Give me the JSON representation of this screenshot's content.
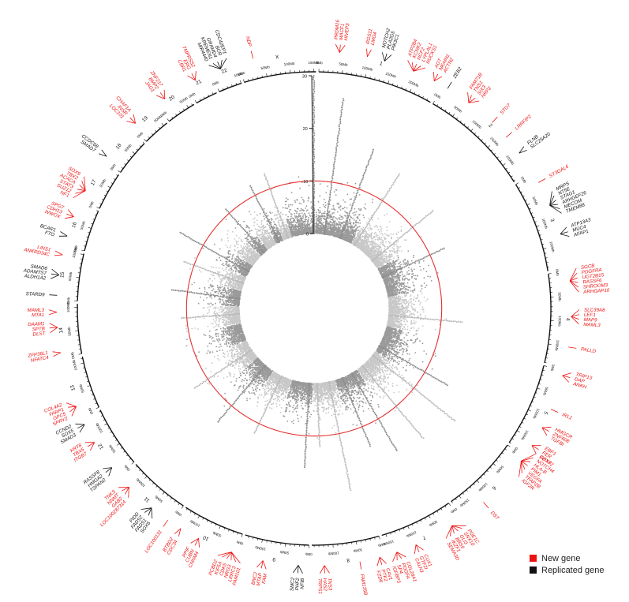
{
  "chart_data": {
    "type": "circular-manhattan",
    "title": "",
    "radial_axis": {
      "ticks": [
        "0",
        "10",
        "20",
        "30"
      ],
      "range": [
        0,
        30
      ]
    },
    "significance_threshold": 10,
    "chromosomes": [
      {
        "name": "1",
        "length": 249,
        "ticks": [
          "0Mb",
          "50Mb",
          "100Mb",
          "150Mb",
          "200Mb"
        ]
      },
      {
        "name": "2",
        "length": 243,
        "ticks": [
          "0Mb",
          "50Mb",
          "100Mb",
          "150Mb",
          "200Mb"
        ]
      },
      {
        "name": "3",
        "length": 198,
        "ticks": [
          "0Mb",
          "50Mb",
          "100Mb",
          "150Mb"
        ]
      },
      {
        "name": "4",
        "length": 191,
        "ticks": [
          "0Mb",
          "50Mb",
          "100Mb",
          "150Mb"
        ]
      },
      {
        "name": "5",
        "length": 181,
        "ticks": [
          "0Mb",
          "50Mb",
          "100Mb",
          "150Mb"
        ]
      },
      {
        "name": "6",
        "length": 171,
        "ticks": [
          "0Mb",
          "50Mb",
          "100Mb",
          "150Mb"
        ]
      },
      {
        "name": "7",
        "length": 159,
        "ticks": [
          "0Mb",
          "50Mb",
          "100Mb",
          "150Mb"
        ]
      },
      {
        "name": "8",
        "length": 145,
        "ticks": [
          "0Mb",
          "50Mb",
          "100Mb"
        ]
      },
      {
        "name": "9",
        "length": 138,
        "ticks": [
          "0Mb",
          "50Mb",
          "100Mb"
        ]
      },
      {
        "name": "10",
        "length": 134,
        "ticks": [
          "0Mb",
          "50Mb",
          "100Mb"
        ]
      },
      {
        "name": "11",
        "length": 135,
        "ticks": [
          "0Mb",
          "50Mb",
          "100Mb"
        ]
      },
      {
        "name": "12",
        "length": 133,
        "ticks": [
          "0Mb",
          "50Mb",
          "100Mb"
        ]
      },
      {
        "name": "13",
        "length": 114,
        "ticks": [
          "0Mb",
          "50Mb",
          "100Mb"
        ]
      },
      {
        "name": "14",
        "length": 107,
        "ticks": [
          "0Mb",
          "50Mb",
          "100Mb"
        ]
      },
      {
        "name": "15",
        "length": 102,
        "ticks": [
          "0Mb",
          "50Mb",
          "100Mb"
        ]
      },
      {
        "name": "16",
        "length": 90,
        "ticks": [
          "0Mb",
          "50Mb"
        ]
      },
      {
        "name": "17",
        "length": 83,
        "ticks": [
          "0Mb",
          "50Mb"
        ]
      },
      {
        "name": "18",
        "length": 80,
        "ticks": [
          "0Mb",
          "50Mb"
        ]
      },
      {
        "name": "19",
        "length": 59,
        "ticks": [
          "0Mb",
          "50Mb"
        ]
      },
      {
        "name": "20",
        "length": 64,
        "ticks": [
          "0Mb",
          "50Mb"
        ]
      },
      {
        "name": "21",
        "length": 48,
        "ticks": [
          "0Mb"
        ]
      },
      {
        "name": "22",
        "length": 51,
        "ticks": [
          "0Mb",
          "50Mb"
        ]
      },
      {
        "name": "X",
        "length": 155,
        "ticks": [
          "0Mb",
          "50Mb",
          "100Mb",
          "150Mb"
        ]
      }
    ],
    "peaks": [
      {
        "chr": "X",
        "pos": 150,
        "value": 30
      },
      {
        "chr": "1",
        "pos": 60,
        "value": 26
      },
      {
        "chr": "1",
        "pos": 170,
        "value": 18
      },
      {
        "chr": "2",
        "pos": 20,
        "value": 16
      },
      {
        "chr": "2",
        "pos": 180,
        "value": 15
      },
      {
        "chr": "3",
        "pos": 60,
        "value": 13
      },
      {
        "chr": "4",
        "pos": 120,
        "value": 14
      },
      {
        "chr": "5",
        "pos": 140,
        "value": 15
      },
      {
        "chr": "6",
        "pos": 30,
        "value": 20
      },
      {
        "chr": "6",
        "pos": 130,
        "value": 18
      },
      {
        "chr": "7",
        "pos": 40,
        "value": 17
      },
      {
        "chr": "7",
        "pos": 110,
        "value": 14
      },
      {
        "chr": "8",
        "pos": 40,
        "value": 21
      },
      {
        "chr": "8",
        "pos": 120,
        "value": 12
      },
      {
        "chr": "9",
        "pos": 20,
        "value": 16
      },
      {
        "chr": "10",
        "pos": 70,
        "value": 12
      },
      {
        "chr": "11",
        "pos": 60,
        "value": 14
      },
      {
        "chr": "12",
        "pos": 60,
        "value": 13
      },
      {
        "chr": "14",
        "pos": 60,
        "value": 11
      },
      {
        "chr": "15",
        "pos": 50,
        "value": 13
      },
      {
        "chr": "16",
        "pos": 50,
        "value": 12
      },
      {
        "chr": "17",
        "pos": 40,
        "value": 15
      },
      {
        "chr": "19",
        "pos": 30,
        "value": 11
      },
      {
        "chr": "21",
        "pos": 20,
        "value": 12
      },
      {
        "chr": "22",
        "pos": 30,
        "value": 13
      }
    ],
    "gene_labels": [
      {
        "chr": "1",
        "pos": 40,
        "labels": [
          "PRDM16",
          "MACF1",
          "HIVEP3"
        ],
        "kind": "new"
      },
      {
        "chr": "1",
        "pos": 95,
        "labels": [
          "RGS11",
          "LMO4"
        ],
        "kind": "new"
      },
      {
        "chr": "1",
        "pos": 130,
        "labels": [
          "NOTCH2",
          "PLA2G5",
          "PIK3C1"
        ],
        "kind": "replicated"
      },
      {
        "chr": "1",
        "pos": 190,
        "labels": [
          "ATP2B4",
          "KCNK2",
          "NCF2",
          "LYPLAL1",
          "NUCKS1"
        ],
        "kind": "new"
      },
      {
        "chr": "1",
        "pos": 235,
        "labels": [
          "AGT",
          "NKAIN1",
          "ACTN2"
        ],
        "kind": "new"
      },
      {
        "chr": "2",
        "pos": 10,
        "labels": [
          "ZEB2"
        ],
        "kind": "replicated"
      },
      {
        "chr": "2",
        "pos": 60,
        "labels": [
          "FAM71B",
          "TNS1",
          "SIX3",
          "NRP2"
        ],
        "kind": "new"
      },
      {
        "chr": "2",
        "pos": 120,
        "labels": [
          "STG7"
        ],
        "kind": "new"
      },
      {
        "chr": "2",
        "pos": 160,
        "labels": [
          "LRRFIP2"
        ],
        "kind": "new"
      },
      {
        "chr": "2",
        "pos": 200,
        "labels": [
          "FLNB",
          "SLC25A20"
        ],
        "kind": "replicated"
      },
      {
        "chr": "3",
        "pos": 20,
        "labels": [
          "ST3GAL6"
        ],
        "kind": "new"
      },
      {
        "chr": "3",
        "pos": 70,
        "labels": [
          "MRPS",
          "NT5E",
          "STAG1",
          "ARHGEF26",
          "MECOM",
          "TMEM88"
        ],
        "kind": "replicated"
      },
      {
        "chr": "3",
        "pos": 130,
        "labels": [
          "ATP13A3",
          "MUC4",
          "AFAP1"
        ],
        "kind": "replicated"
      },
      {
        "chr": "4",
        "pos": 20,
        "labels": [
          "SGCB",
          "PDGFRA",
          "UGT2B15",
          "RASSF6",
          "SHROOM3",
          "ARHGAP10"
        ],
        "kind": "new"
      },
      {
        "chr": "4",
        "pos": 90,
        "labels": [
          "SLC39A8",
          "LEF1",
          "MAP9",
          "MAML3"
        ],
        "kind": "new"
      },
      {
        "chr": "4",
        "pos": 150,
        "labels": [
          "PALLD"
        ],
        "kind": "new"
      },
      {
        "chr": "5",
        "pos": 10,
        "labels": [
          "TRIP13",
          "DAP",
          "ANKH"
        ],
        "kind": "new"
      },
      {
        "chr": "5",
        "pos": 80,
        "labels": [
          "IRL1"
        ],
        "kind": "new"
      },
      {
        "chr": "5",
        "pos": 120,
        "labels": [
          "HMGCR",
          "ZNF608",
          "TGFBI"
        ],
        "kind": "new"
      },
      {
        "chr": "5",
        "pos": 160,
        "labels": [
          "EBF1",
          "FER",
          "GPX3"
        ],
        "kind": "new"
      },
      {
        "chr": "6",
        "pos": 10,
        "labels": [
          "FOXF2",
          "NOTCH4",
          "HLA-B",
          "PIM1",
          "VEGFA",
          "TFAP2B",
          "IGF2R"
        ],
        "kind": "new"
      },
      {
        "chr": "6",
        "pos": 120,
        "labels": [
          "DST"
        ],
        "kind": "new"
      },
      {
        "chr": "7",
        "pos": 20,
        "labels": [
          "PDE1C",
          "SNX10",
          "GLI3",
          "BBS9",
          "IKZF1",
          "SEMA3D"
        ],
        "kind": "new"
      },
      {
        "chr": "7",
        "pos": 100,
        "labels": [
          "CUX1",
          "GTF2I",
          "CALN1"
        ],
        "kind": "new"
      },
      {
        "chr": "7",
        "pos": 140,
        "labels": [
          "COL28A1",
          "PDGFA",
          "SP4",
          "IGFBP3"
        ],
        "kind": "new"
      },
      {
        "chr": "8",
        "pos": 10,
        "labels": [
          "CAV1",
          "PTK2",
          "FZD6"
        ],
        "kind": "new"
      },
      {
        "chr": "8",
        "pos": 50,
        "labels": [
          "FAM135B"
        ],
        "kind": "new"
      },
      {
        "chr": "8",
        "pos": 120,
        "labels": [
          "TNS3",
          "HAS2",
          "TRPS1"
        ],
        "kind": "new"
      },
      {
        "chr": "9",
        "pos": 20,
        "labels": [
          "NFIB",
          "PHF2",
          "SMC2"
        ],
        "kind": "replicated"
      },
      {
        "chr": "9",
        "pos": 90,
        "labels": [
          "FAM",
          "MTAP",
          "BNC2"
        ],
        "kind": "new"
      },
      {
        "chr": "10",
        "pos": 10,
        "labels": [
          "FAM101",
          "LRRC3",
          "NRG3",
          "CDK5",
          "KIF5A",
          "PCBD2"
        ],
        "kind": "new"
      },
      {
        "chr": "10",
        "pos": 80,
        "labels": [
          "CNNM4",
          "CUBN",
          "PPIF"
        ],
        "kind": "new"
      },
      {
        "chr": "10",
        "pos": 120,
        "labels": [
          "CDC34",
          "BTBD2"
        ],
        "kind": "new"
      },
      {
        "chr": "11",
        "pos": 10,
        "labels": [
          "LOC100131"
        ],
        "kind": "new"
      },
      {
        "chr": "11",
        "pos": 50,
        "labels": [
          "SOX6",
          "FADS1",
          "FADS2",
          "PIDD"
        ],
        "kind": "replicated"
      },
      {
        "chr": "11",
        "pos": 110,
        "labels": [
          "LOC100287314",
          "GAB2",
          "NNMT",
          "TNKS"
        ],
        "kind": "new"
      },
      {
        "chr": "12",
        "pos": 20,
        "labels": [
          "TSPAN2",
          "HMGA2",
          "RASSF8"
        ],
        "kind": "replicated"
      },
      {
        "chr": "12",
        "pos": 80,
        "labels": [
          "ITGB7",
          "TBX5",
          "KRT8"
        ],
        "kind": "new"
      },
      {
        "chr": "12",
        "pos": 120,
        "labels": [
          "SMAD3",
          "SOX5",
          "CCND2"
        ],
        "kind": "replicated"
      },
      {
        "chr": "13",
        "pos": 20,
        "labels": [
          "SPRY2",
          "GPC5",
          "FARP1",
          "COL4A2"
        ],
        "kind": "new"
      },
      {
        "chr": "14",
        "pos": 10,
        "labels": [
          "NFATC4",
          "ZFP36L1"
        ],
        "kind": "new"
      },
      {
        "chr": "14",
        "pos": 60,
        "labels": [
          "DLST",
          "SPTB",
          "DAAM1"
        ],
        "kind": "new"
      },
      {
        "chr": "14",
        "pos": 90,
        "labels": [
          "MTA1",
          "MAML3"
        ],
        "kind": "new"
      },
      {
        "chr": "15",
        "pos": 10,
        "labels": [
          "STARD9"
        ],
        "kind": "replicated"
      },
      {
        "chr": "15",
        "pos": 50,
        "labels": [
          "ALDH1A2",
          "ADAMTS7",
          "SMAD6"
        ],
        "kind": "replicated"
      },
      {
        "chr": "15",
        "pos": 90,
        "labels": [
          "ANKRD34C",
          "LINS1"
        ],
        "kind": "new"
      },
      {
        "chr": "16",
        "pos": 20,
        "labels": [
          "FTO",
          "BCAR1"
        ],
        "kind": "replicated"
      },
      {
        "chr": "16",
        "pos": 60,
        "labels": [
          "WWOX",
          "CDH13",
          "SPG7"
        ],
        "kind": "new"
      },
      {
        "chr": "17",
        "pos": 20,
        "labels": [
          "NF1",
          "SUZ12",
          "STAT3",
          "ACACA",
          "TBX2",
          "SOX9"
        ],
        "kind": "new"
      },
      {
        "chr": "18",
        "pos": 10,
        "labels": [
          "SMAD7",
          "CCDC68"
        ],
        "kind": "replicated"
      },
      {
        "chr": "19",
        "pos": 10,
        "labels": [
          "LOC101",
          "INSR",
          "CHAF1A"
        ],
        "kind": "new"
      },
      {
        "chr": "20",
        "pos": 20,
        "labels": [
          "JAG1",
          "BMP2",
          "ZNF217"
        ],
        "kind": "new"
      },
      {
        "chr": "21",
        "pos": 20,
        "labels": [
          "CBR1",
          "ERG",
          "TMPRSS2"
        ],
        "kind": "new"
      },
      {
        "chr": "22",
        "pos": 20,
        "labels": [
          "MIR4440",
          "KREMEN1",
          "GRAMD4",
          "BCR",
          "CDC42EP1"
        ],
        "kind": "replicated"
      },
      {
        "chr": "X",
        "pos": 30,
        "labels": [
          "NDP"
        ],
        "kind": "new"
      }
    ],
    "legend": [
      {
        "label": "New gene",
        "color": "#ee1111"
      },
      {
        "label": "Replicated gene",
        "color": "#111111"
      }
    ],
    "colors": {
      "odd_chromosome": "#9a9a9a",
      "even_chromosome": "#c8c8c8",
      "threshold": "#e33030",
      "new_gene": "#ee1111",
      "replicated_gene": "#111111",
      "outline": "#111111"
    }
  }
}
